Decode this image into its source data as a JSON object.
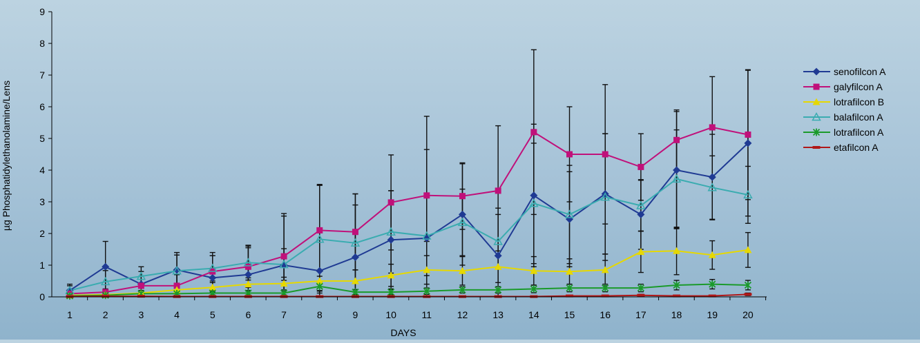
{
  "chart_data": {
    "type": "line",
    "xlabel": "DAYS",
    "ylabel": "µg Phosphatidylethanolamine/Lens",
    "ylim": [
      0,
      9
    ],
    "yticks": [
      0,
      1,
      2,
      3,
      4,
      5,
      6,
      7,
      8,
      9
    ],
    "x": [
      1,
      2,
      3,
      4,
      5,
      6,
      7,
      8,
      9,
      10,
      11,
      12,
      13,
      14,
      15,
      16,
      17,
      18,
      19,
      20
    ],
    "grid": false,
    "legend": "right",
    "error_bars": true,
    "series": [
      {
        "name": "senofilcon A",
        "color": "#1f3a93",
        "marker": "diamond",
        "values": [
          0.2,
          0.95,
          0.4,
          0.85,
          0.6,
          0.7,
          1.0,
          0.82,
          1.25,
          1.8,
          1.85,
          2.6,
          1.3,
          3.2,
          2.45,
          3.25,
          2.6,
          4.0,
          3.78,
          4.85
        ],
        "err": [
          0.15,
          0.8,
          0.4,
          0.55,
          0.7,
          0.85,
          1.55,
          2.7,
          2.0,
          1.55,
          3.85,
          1.6,
          1.5,
          2.25,
          1.5,
          1.9,
          1.1,
          1.85,
          1.35,
          2.3
        ]
      },
      {
        "name": "galyfilcon A",
        "color": "#c0107a",
        "marker": "square",
        "values": [
          0.1,
          0.15,
          0.35,
          0.35,
          0.8,
          0.95,
          1.28,
          2.1,
          2.05,
          2.98,
          3.2,
          3.18,
          3.35,
          5.2,
          4.5,
          4.5,
          4.1,
          4.95,
          5.35,
          5.12
        ],
        "err": [
          0.1,
          0.1,
          0.3,
          0.35,
          0.6,
          0.65,
          1.35,
          1.45,
          1.2,
          1.5,
          1.45,
          1.05,
          2.05,
          2.6,
          1.5,
          2.2,
          1.05,
          0.95,
          1.6,
          2.05
        ]
      },
      {
        "name": "lotrafilcon B",
        "color": "#e6d800",
        "marker": "triangle",
        "values": [
          0.05,
          0.07,
          0.12,
          0.22,
          0.3,
          0.4,
          0.42,
          0.5,
          0.5,
          0.68,
          0.85,
          0.82,
          0.95,
          0.82,
          0.8,
          0.85,
          1.42,
          1.45,
          1.32,
          1.48
        ],
        "err": [
          0.05,
          0.05,
          0.08,
          0.12,
          0.15,
          0.2,
          0.2,
          0.3,
          0.35,
          0.35,
          0.45,
          0.45,
          0.5,
          0.45,
          0.4,
          0.5,
          0.65,
          0.75,
          0.45,
          0.55
        ]
      },
      {
        "name": "balafilcon A",
        "color": "#3aacb0",
        "marker": "triangle-open",
        "values": [
          0.2,
          0.48,
          0.65,
          0.82,
          0.9,
          1.08,
          1.02,
          1.82,
          1.7,
          2.05,
          1.92,
          2.35,
          1.75,
          2.95,
          2.6,
          3.15,
          2.88,
          3.72,
          3.45,
          3.22
        ],
        "err": [
          0.2,
          0.35,
          0.3,
          0.5,
          0.4,
          0.55,
          0.5,
          1.7,
          1.2,
          1.3,
          1.25,
          1.05,
          0.85,
          1.9,
          1.55,
          2.0,
          0.8,
          1.55,
          1.0,
          0.9
        ]
      },
      {
        "name": "lotrafilcon A",
        "color": "#1a9a2a",
        "marker": "star",
        "values": [
          0.03,
          0.05,
          0.1,
          0.1,
          0.12,
          0.12,
          0.12,
          0.33,
          0.15,
          0.15,
          0.18,
          0.22,
          0.22,
          0.25,
          0.28,
          0.28,
          0.28,
          0.37,
          0.4,
          0.37
        ],
        "err": [
          0.03,
          0.05,
          0.05,
          0.05,
          0.06,
          0.06,
          0.06,
          0.15,
          0.08,
          0.08,
          0.1,
          0.1,
          0.1,
          0.12,
          0.12,
          0.12,
          0.12,
          0.15,
          0.15,
          0.15
        ]
      },
      {
        "name": "etafilcon A",
        "color": "#b01818",
        "marker": "dash",
        "values": [
          0.01,
          0.02,
          0.02,
          0.01,
          0.01,
          0.01,
          0.01,
          0.01,
          0.01,
          0.01,
          0.01,
          0.01,
          0.01,
          0.01,
          0.03,
          0.03,
          0.05,
          0.03,
          0.03,
          0.08
        ],
        "err": [
          0.01,
          0.01,
          0.01,
          0.01,
          0.01,
          0.01,
          0.01,
          0.01,
          0.01,
          0.01,
          0.01,
          0.01,
          0.01,
          0.01,
          0.02,
          0.02,
          0.03,
          0.02,
          0.02,
          0.04
        ]
      }
    ]
  }
}
